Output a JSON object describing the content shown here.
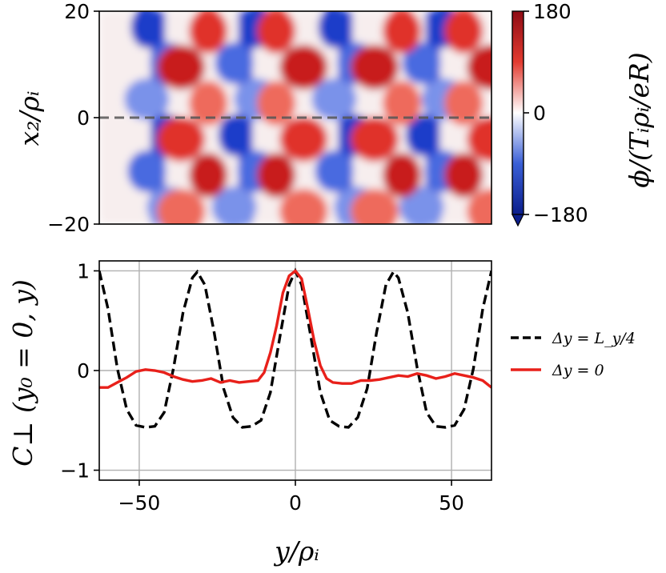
{
  "chart_data": [
    {
      "type": "heatmap",
      "title": "",
      "xlabel": "",
      "ylabel": "x₂/ρᵢ",
      "ylim": [
        -20,
        20
      ],
      "xlim": [
        -62.8,
        62.8
      ],
      "ytick_labels": [
        "20",
        "0",
        "−20"
      ],
      "ytick_values": [
        20,
        0,
        -20
      ],
      "colorbar": {
        "label": "ϕ/(Tᵢρᵢ/eR)",
        "range": [
          -180,
          180
        ],
        "tick_labels": [
          "180",
          "0",
          "−180"
        ],
        "tick_values": [
          180,
          0,
          -180
        ],
        "colors": [
          "#0b1e8c",
          "#ffffff",
          "#8e0b14"
        ],
        "extend": "min"
      },
      "annotation": "dashed line at x2 = 0",
      "blue_band_centers_y": [
        -44,
        -16,
        16,
        44
      ],
      "red_band_centers_y": [
        -32,
        -2,
        30,
        58
      ]
    },
    {
      "type": "line",
      "title": "",
      "xlabel": "y/ρᵢ",
      "ylabel": "C⊥ (y₀ = 0, y)",
      "xlim": [
        -62.8,
        62.8
      ],
      "ylim": [
        -1.1,
        1.1
      ],
      "grid": true,
      "xtick_labels": [
        "−50",
        "0",
        "50"
      ],
      "xtick_values": [
        -50,
        0,
        50
      ],
      "ytick_labels": [
        "1",
        "0",
        "−1"
      ],
      "ytick_values": [
        1,
        0,
        -1
      ],
      "legend_position": "right-outside",
      "series": [
        {
          "name": "Δy = L_y/4",
          "style": "dashed",
          "color": "#000000",
          "x": [
            -62.8,
            -60,
            -57,
            -54,
            -51,
            -48,
            -45,
            -42,
            -39,
            -36,
            -33,
            -31.4,
            -29,
            -26,
            -23,
            -20,
            -17,
            -14,
            -11,
            -8,
            -5,
            -2,
            0,
            2,
            5,
            8,
            11,
            14,
            17,
            20,
            23,
            26,
            29,
            31.4,
            33,
            36,
            39,
            42,
            45,
            48,
            51,
            54,
            57,
            60,
            62.8
          ],
          "y": [
            1.0,
            0.62,
            0.02,
            -0.39,
            -0.55,
            -0.57,
            -0.56,
            -0.42,
            0.03,
            0.58,
            0.93,
            0.99,
            0.86,
            0.38,
            -0.18,
            -0.47,
            -0.57,
            -0.56,
            -0.5,
            -0.22,
            0.33,
            0.86,
            1.0,
            0.86,
            0.33,
            -0.22,
            -0.5,
            -0.56,
            -0.57,
            -0.47,
            -0.18,
            0.38,
            0.86,
            0.99,
            0.93,
            0.58,
            0.03,
            -0.42,
            -0.56,
            -0.57,
            -0.55,
            -0.39,
            0.02,
            0.62,
            1.0
          ]
        },
        {
          "name": "Δy = 0",
          "style": "solid",
          "color": "#e8201a",
          "x": [
            -62.8,
            -60,
            -57,
            -54,
            -51,
            -48,
            -45,
            -42,
            -39,
            -36,
            -33,
            -30,
            -27,
            -24,
            -21,
            -18,
            -15,
            -12,
            -10,
            -8,
            -6,
            -4,
            -2,
            0,
            2,
            4,
            6,
            8,
            10,
            12,
            15,
            18,
            21,
            24,
            27,
            30,
            33,
            36,
            39,
            42,
            45,
            48,
            51,
            54,
            57,
            60,
            62.8
          ],
          "y": [
            -0.17,
            -0.17,
            -0.12,
            -0.07,
            -0.01,
            0.01,
            0.0,
            -0.02,
            -0.06,
            -0.09,
            -0.11,
            -0.1,
            -0.08,
            -0.12,
            -0.1,
            -0.12,
            -0.11,
            -0.1,
            -0.02,
            0.18,
            0.45,
            0.78,
            0.95,
            1.0,
            0.92,
            0.62,
            0.3,
            0.05,
            -0.08,
            -0.12,
            -0.13,
            -0.13,
            -0.1,
            -0.1,
            -0.09,
            -0.07,
            -0.05,
            -0.06,
            -0.03,
            -0.05,
            -0.08,
            -0.06,
            -0.03,
            -0.05,
            -0.07,
            -0.1,
            -0.17
          ]
        }
      ]
    }
  ]
}
